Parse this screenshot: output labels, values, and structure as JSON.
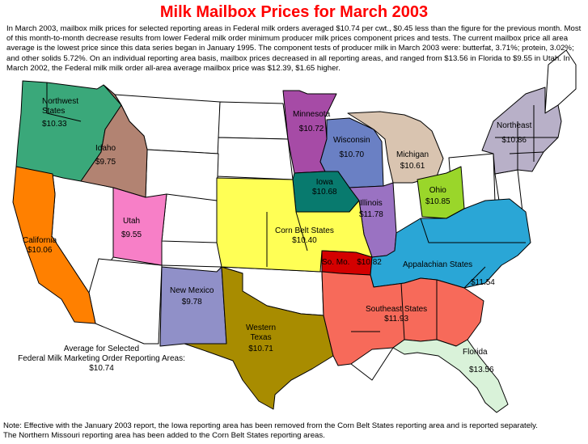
{
  "title": "Milk Mailbox Prices for March 2003",
  "intro": "In March 2003, mailbox milk prices for selected reporting areas in Federal milk orders averaged $10.74 per cwt., $0.45 less than the figure for the previous month.  Most of this month-to-month decrease results from lower Federal milk order minimum producer milk prices component prices and tests. The current mailbox price all area average is the lowest price since this data series began in January 1995. The component tests of producer milk in March 2003 were: butterfat, 3.71%; protein, 3.02%; and other solids 5.72%. On an individual reporting area basis, mailbox prices decreased in all reporting areas, and ranged from $13.56 in Florida to $9.55 in Utah.  In March 2002, the Federal milk milk order all-area average mailbox price was $12.39, $1.65 higher.",
  "regions": {
    "northwest": {
      "name_l1": "Northwest",
      "name_l2": "States",
      "price": "$10.33",
      "color": "#3aa87a"
    },
    "idaho": {
      "name": "Idaho",
      "price": "$9.75",
      "color": "#b28372"
    },
    "california": {
      "name": "California",
      "price": "$10.06",
      "color": "#ff8000"
    },
    "utah": {
      "name": "Utah",
      "price": "$9.55",
      "color": "#f77fc7"
    },
    "new_mexico": {
      "name": "New Mexico",
      "price": "$9.78",
      "color": "#9090c8"
    },
    "western_texas": {
      "name_l1": "Western",
      "name_l2": "Texas",
      "price": "$10.71",
      "color": "#a88c00"
    },
    "minnesota": {
      "name": "Minnesota",
      "price": "$10.72",
      "color": "#a64ba6"
    },
    "wisconsin": {
      "name": "Wisconsin",
      "price": "$10.70",
      "color": "#6a80c4"
    },
    "michigan": {
      "name": "Michigan",
      "price": "$10.61",
      "color": "#d9c4b0"
    },
    "iowa": {
      "name": "Iowa",
      "price": "$10.68",
      "color": "#087a6e"
    },
    "illinois": {
      "name": "Illinois",
      "price": "$11.78",
      "color": "#9a72c2"
    },
    "ohio": {
      "name": "Ohio",
      "price": "$10.85",
      "color": "#9ad62a"
    },
    "corn_belt": {
      "name": "Corn Belt States",
      "price": "$10.40",
      "color": "#ffff55"
    },
    "so_mo": {
      "name": "So. Mo.",
      "price": "$10.82",
      "color": "#d40000"
    },
    "appalachian": {
      "name": "Appalachian States",
      "price": "$11.54",
      "color": "#2aa6d6"
    },
    "southeast": {
      "name": "Southeast States",
      "price": "$11.93",
      "color": "#f76a5a"
    },
    "florida": {
      "name": "Florida",
      "price": "$13.56",
      "color": "#d9f2d9"
    },
    "northeast": {
      "name": "Northeast",
      "price": "$10.86",
      "color": "#b8b0c8"
    }
  },
  "average": {
    "line1": "Average for Selected",
    "line2": "Federal Milk Marketing Order Reporting Areas:",
    "value": "$10.74"
  },
  "note_line1": "Note: Effective with the January 2003 report, the Iowa reporting area has been removed from the Corn Belt States reporting area and is reported separately.",
  "note_line2": "The Northern Missouri reporting area has been added to the Corn Belt States reporting areas."
}
